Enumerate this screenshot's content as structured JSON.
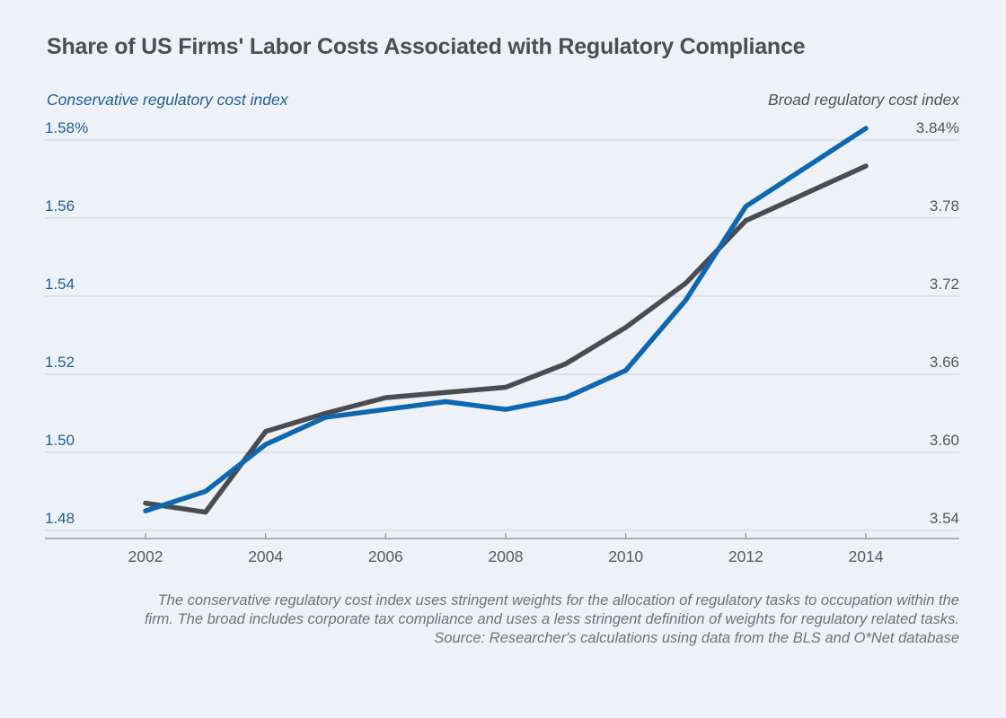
{
  "page": {
    "title": "Share of US Firms' Labor Costs Associated with Regulatory Compliance"
  },
  "chart_data": {
    "type": "line",
    "title": "Share of US Firms' Labor Costs Associated with Regulatory Compliance",
    "grid": true,
    "x": [
      2002,
      2003,
      2004,
      2005,
      2006,
      2007,
      2008,
      2009,
      2010,
      2011,
      2012,
      2013,
      2014
    ],
    "x_ticks": [
      2002,
      2004,
      2006,
      2008,
      2010,
      2012,
      2014
    ],
    "left_axis": {
      "label": "Conservative regulatory cost index",
      "ticks": [
        "1.58%",
        "1.56",
        "1.54",
        "1.52",
        "1.50",
        "1.48"
      ],
      "min": 1.48,
      "max": 1.58,
      "color": "#1d5f93"
    },
    "right_axis": {
      "label": "Broad regulatory cost index",
      "ticks": [
        "3.84%",
        "3.78",
        "3.72",
        "3.66",
        "3.60",
        "3.54"
      ],
      "min": 3.54,
      "max": 3.84,
      "color": "#53575e"
    },
    "series": [
      {
        "id": "broad",
        "name": "Broad regulatory cost index",
        "axis": "right",
        "color": "#4a4c4f",
        "values": [
          3.561,
          3.554,
          3.616,
          3.63,
          3.642,
          3.646,
          3.65,
          3.668,
          3.696,
          3.73,
          3.778,
          3.799,
          3.82
        ]
      },
      {
        "id": "conservative",
        "name": "Conservative regulatory cost index",
        "axis": "left",
        "color": "#0e67af",
        "values": [
          1.485,
          1.49,
          1.502,
          1.509,
          1.511,
          1.513,
          1.511,
          1.514,
          1.521,
          1.539,
          1.563,
          1.573,
          1.583
        ]
      }
    ]
  },
  "footer": {
    "lines": [
      "The conservative regulatory cost index uses stringent weights for the allocation of regulatory tasks to occupation within the",
      "firm. The broad includes corporate tax compliance and uses a less stringent definition of weights for regulatory related tasks.",
      "Source: Researcher's calculations using data from the BLS and O*Net database"
    ]
  },
  "colors": {
    "background": "#eef1f7",
    "title_text": "#494f57",
    "conservative_line": "#0e67af",
    "broad_line": "#4a4c4f",
    "left_axis_text": "#1d5f93",
    "right_axis_text": "#53575e",
    "gridline": "#cdd1d9",
    "axis_line": "#959ba4",
    "footer_text": "#6e737b"
  }
}
